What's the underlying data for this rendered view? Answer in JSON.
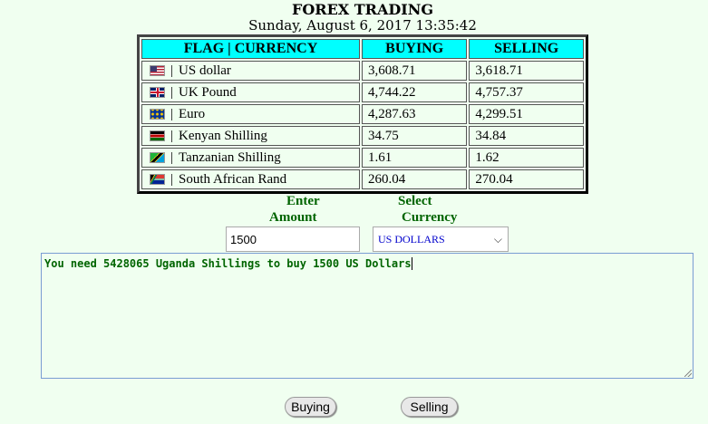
{
  "header": {
    "title": "FOREX TRADING",
    "date": "Sunday, August 6, 2017 13:35:42"
  },
  "table": {
    "columns": [
      "FLAG | CURRENCY",
      "BUYING",
      "SELLING"
    ],
    "rows": [
      {
        "flag_icon": "us-flag-icon",
        "currency": "US dollar",
        "buying": "3,608.71",
        "selling": "3,618.71"
      },
      {
        "flag_icon": "uk-flag-icon",
        "currency": "UK Pound",
        "buying": "4,744.22",
        "selling": "4,757.37"
      },
      {
        "flag_icon": "eu-flag-icon",
        "currency": "Euro",
        "buying": "4,287.63",
        "selling": "4,299.51"
      },
      {
        "flag_icon": "kenya-flag-icon",
        "currency": "Kenyan Shilling",
        "buying": "34.75",
        "selling": "34.84"
      },
      {
        "flag_icon": "tanzania-flag-icon",
        "currency": "Tanzanian Shilling",
        "buying": "1.61",
        "selling": "1.62"
      },
      {
        "flag_icon": "south-africa-flag-icon",
        "currency": "South African Rand",
        "buying": "260.04",
        "selling": "270.04"
      }
    ],
    "separator": "|"
  },
  "form": {
    "amount_label_line1": "Enter",
    "amount_label_line2": "Amount",
    "currency_label_line1": "Select",
    "currency_label_line2": "Currency",
    "amount_value": "1500",
    "currency_selected": "US DOLLARS",
    "result_text": "You need 5428065 Uganda Shillings to buy 1500 US Dollars"
  },
  "buttons": {
    "buying": "Buying",
    "selling": "Selling"
  },
  "colors": {
    "page_background": "#f0fff0",
    "header_cell": "#00ffff",
    "label_green": "#006400",
    "select_text": "#0000cc"
  }
}
